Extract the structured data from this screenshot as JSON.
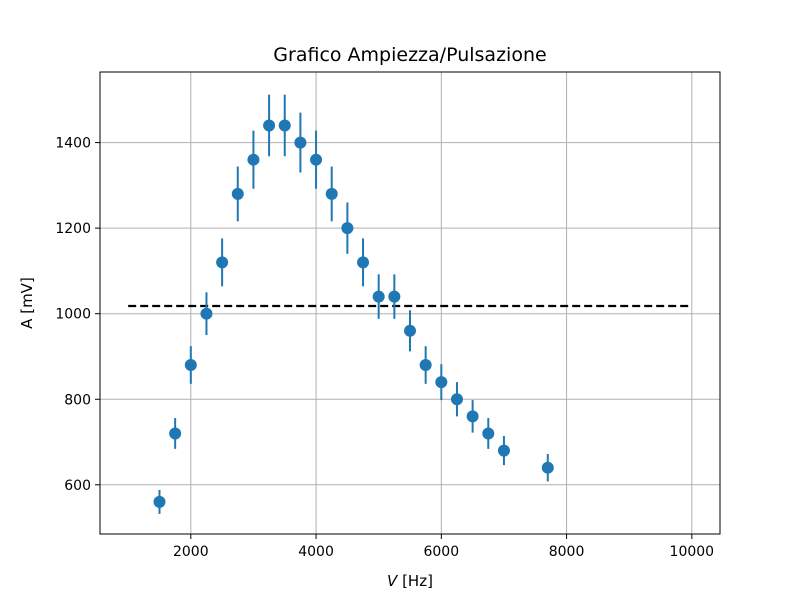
{
  "chart_data": {
    "type": "scatter",
    "title": "Grafico Ampiezza/Pulsazione",
    "xlabel_var": "V",
    "xlabel_unit": " [Hz]",
    "ylabel": "A [mV]",
    "xlim": [
      550,
      10450
    ],
    "ylim": [
      485,
      1565
    ],
    "xticks": [
      2000,
      4000,
      6000,
      8000,
      10000
    ],
    "yticks": [
      600,
      800,
      1000,
      1200,
      1400
    ],
    "grid": true,
    "series": [
      {
        "marker_color": "#1f77b4",
        "points": [
          {
            "x": 1500,
            "y": 560,
            "yerr": 28
          },
          {
            "x": 1750,
            "y": 720,
            "yerr": 36
          },
          {
            "x": 2000,
            "y": 880,
            "yerr": 44
          },
          {
            "x": 2250,
            "y": 1000,
            "yerr": 50
          },
          {
            "x": 2500,
            "y": 1120,
            "yerr": 56
          },
          {
            "x": 2750,
            "y": 1280,
            "yerr": 64
          },
          {
            "x": 3000,
            "y": 1360,
            "yerr": 68
          },
          {
            "x": 3250,
            "y": 1440,
            "yerr": 72
          },
          {
            "x": 3500,
            "y": 1440,
            "yerr": 72
          },
          {
            "x": 3750,
            "y": 1400,
            "yerr": 70
          },
          {
            "x": 4000,
            "y": 1360,
            "yerr": 68
          },
          {
            "x": 4250,
            "y": 1280,
            "yerr": 64
          },
          {
            "x": 4500,
            "y": 1200,
            "yerr": 60
          },
          {
            "x": 4750,
            "y": 1120,
            "yerr": 56
          },
          {
            "x": 5000,
            "y": 1040,
            "yerr": 52
          },
          {
            "x": 5250,
            "y": 1040,
            "yerr": 52
          },
          {
            "x": 5500,
            "y": 960,
            "yerr": 48
          },
          {
            "x": 5750,
            "y": 880,
            "yerr": 44
          },
          {
            "x": 6000,
            "y": 840,
            "yerr": 42
          },
          {
            "x": 6250,
            "y": 800,
            "yerr": 40
          },
          {
            "x": 6500,
            "y": 760,
            "yerr": 38
          },
          {
            "x": 6750,
            "y": 720,
            "yerr": 36
          },
          {
            "x": 7000,
            "y": 680,
            "yerr": 34
          },
          {
            "x": 7700,
            "y": 640,
            "yerr": 32
          }
        ]
      }
    ],
    "reference_line": {
      "y": 1018,
      "x_start": 1000,
      "x_end": 10000,
      "style": "dashed",
      "color": "#000000"
    }
  }
}
